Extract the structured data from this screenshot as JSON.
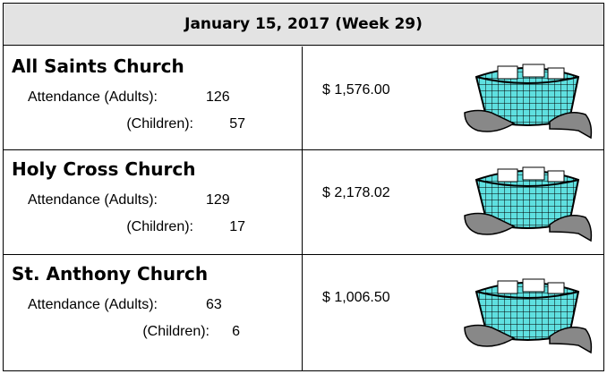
{
  "header": {
    "title": "January 15, 2017 (Week 29)"
  },
  "rows": [
    {
      "name": "All Saints Church",
      "adults_label": "Attendance (Adults):",
      "adults": 126,
      "children_label": "(Children):",
      "children": 57,
      "amount": "$ 1,576.00"
    },
    {
      "name": "Holy Cross Church",
      "adults_label": "Attendance (Adults):",
      "adults": 129,
      "children_label": "(Children):",
      "children": 17,
      "amount": "$ 2,178.02"
    },
    {
      "name": "St. Anthony Church",
      "adults_label": "Attendance (Adults):",
      "adults": 63,
      "children_label": "(Children):",
      "children": 6,
      "amount": "$ 1,006.50"
    }
  ]
}
